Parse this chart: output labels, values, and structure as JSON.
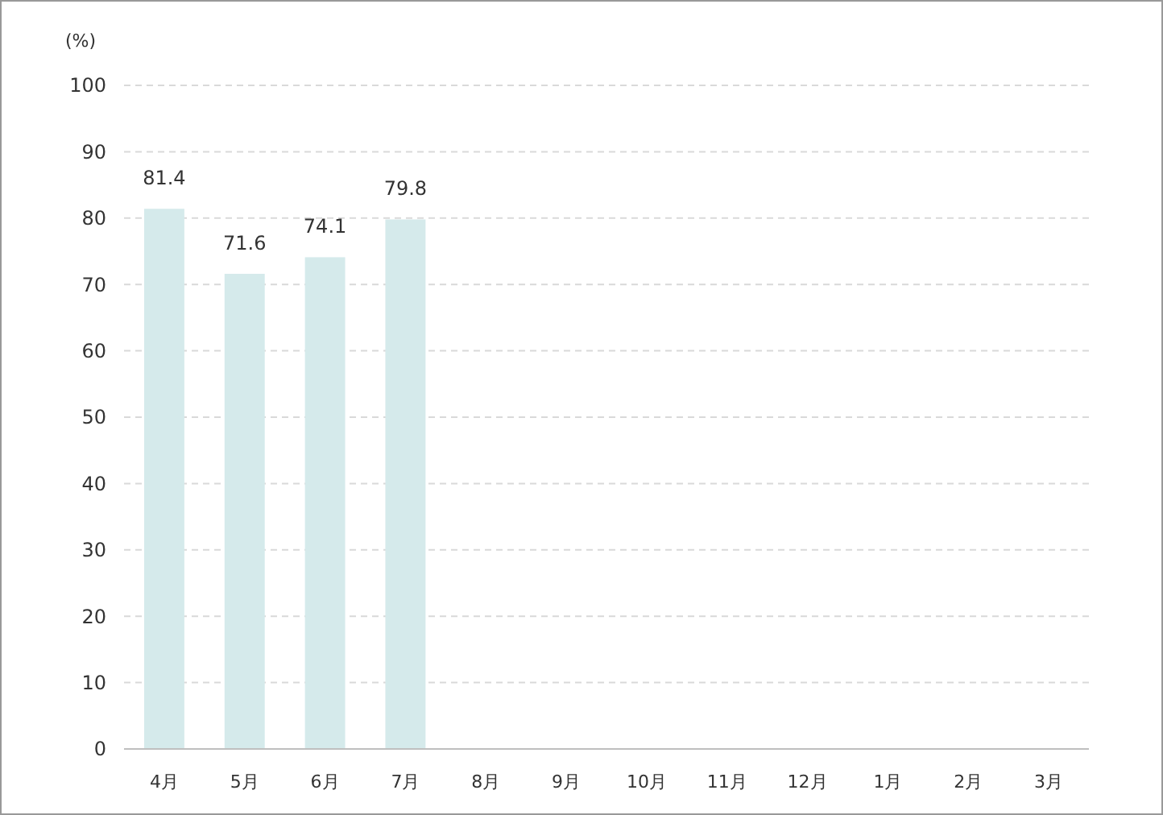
{
  "chart_data": {
    "type": "bar",
    "ylabel": "(%)",
    "categories": [
      "4月",
      "5月",
      "6月",
      "7月",
      "8月",
      "9月",
      "10月",
      "11月",
      "12月",
      "1月",
      "2月",
      "3月"
    ],
    "values": [
      81.4,
      71.6,
      74.1,
      79.8,
      null,
      null,
      null,
      null,
      null,
      null,
      null,
      null
    ],
    "color": "#d5eaeb",
    "data_labels": true,
    "grid": "y",
    "ylim": [
      0,
      100
    ],
    "yticks": [
      0,
      10,
      20,
      30,
      40,
      50,
      60,
      70,
      80,
      90,
      100
    ]
  }
}
